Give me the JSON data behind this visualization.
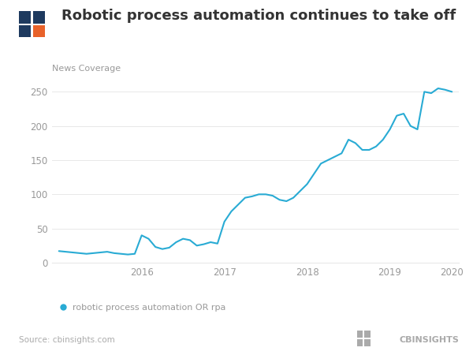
{
  "title": "Robotic process automation continues to take off",
  "ylabel": "News Coverage",
  "legend_label": "robotic process automation OR rpa",
  "source": "Source: cbinsights.com",
  "line_color": "#29ABD4",
  "background_color": "#ffffff",
  "x_values": [
    0,
    1,
    2,
    3,
    4,
    5,
    6,
    7,
    8,
    9,
    10,
    11,
    12,
    13,
    14,
    15,
    16,
    17,
    18,
    19,
    20,
    21,
    22,
    23,
    24,
    25,
    26,
    27,
    28,
    29,
    30,
    31,
    32,
    33,
    34,
    35,
    36,
    37,
    38,
    39,
    40,
    41,
    42,
    43,
    44,
    45,
    46,
    47,
    48,
    49,
    50,
    51,
    52,
    53,
    54,
    55,
    56,
    57
  ],
  "y_values": [
    17,
    16,
    15,
    14,
    13,
    14,
    15,
    16,
    14,
    13,
    12,
    13,
    40,
    35,
    23,
    20,
    22,
    30,
    35,
    33,
    25,
    27,
    30,
    28,
    60,
    75,
    85,
    95,
    97,
    100,
    100,
    98,
    92,
    90,
    95,
    105,
    115,
    130,
    145,
    150,
    155,
    160,
    180,
    175,
    165,
    165,
    170,
    180,
    195,
    215,
    218,
    200,
    195,
    250,
    248,
    255,
    253,
    250
  ],
  "x_tick_positions": [
    12,
    24,
    36,
    48,
    57
  ],
  "x_tick_labels": [
    "2016",
    "2017",
    "2018",
    "2019",
    "2020"
  ],
  "ylim": [
    0,
    270
  ],
  "yticks": [
    0,
    50,
    100,
    150,
    200,
    250
  ],
  "cb_icon_color1": "#1E3A5F",
  "cb_icon_color2": "#E8622A",
  "cb_text_color": "#aaaaaa",
  "title_color": "#333333",
  "axis_label_color": "#999999",
  "tick_color": "#999999",
  "grid_color": "#e8e8e8"
}
